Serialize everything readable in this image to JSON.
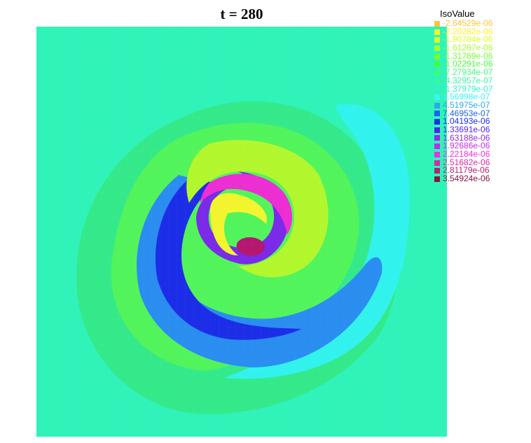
{
  "chart_data": {
    "type": "heatmap",
    "title": "t = 280",
    "legend": {
      "title": "IsoValue",
      "placement": "top-right",
      "entries": [
        {
          "label": "-2.64529e-06",
          "color": "#ffc43c"
        },
        {
          "label": "-2.20282e-06",
          "color": "#fff025"
        },
        {
          "label": "-1.90784e-06",
          "color": "#dcff27"
        },
        {
          "label": "-1.61287e-06",
          "color": "#a6ff2a"
        },
        {
          "label": "-1.31789e-06",
          "color": "#72ff2e"
        },
        {
          "label": "-1.02291e-06",
          "color": "#46ff3e"
        },
        {
          "label": "-7.27934e-07",
          "color": "#3cff78"
        },
        {
          "label": "-4.32957e-07",
          "color": "#36f7a6"
        },
        {
          "label": "-1.37979e-07",
          "color": "#32f0c8"
        },
        {
          "label": "1.56998e-07",
          "color": "#36f6f6"
        },
        {
          "label": "4.51975e-07",
          "color": "#2aa8ee"
        },
        {
          "label": "7.46953e-07",
          "color": "#1f5ff0"
        },
        {
          "label": "1.04193e-06",
          "color": "#1c2df0"
        },
        {
          "label": "1.33691e-06",
          "color": "#4f24f0"
        },
        {
          "label": "1.63188e-06",
          "color": "#9426f0"
        },
        {
          "label": "1.92686e-06",
          "color": "#c42aec"
        },
        {
          "label": "2.22184e-06",
          "color": "#f02ee2"
        },
        {
          "label": "2.51682e-06",
          "color": "#dc28a6"
        },
        {
          "label": "2.81179e-06",
          "color": "#b81f78"
        },
        {
          "label": "3.54924e-06",
          "color": "#8a1446"
        }
      ]
    },
    "colors": {
      "background_field": "#2ff3b8",
      "outer_ring": "#34e98a",
      "mid_ring": "#52f45c",
      "yellow_green": "#b2f72e",
      "yellow": "#f2f52e",
      "blue_arm": "#2a8df0",
      "deep_blue": "#1c2de8",
      "violet": "#7a2ae8",
      "magenta": "#ec2ed2",
      "core": "#b4176f",
      "cyan_arm": "#32f2ee"
    }
  }
}
